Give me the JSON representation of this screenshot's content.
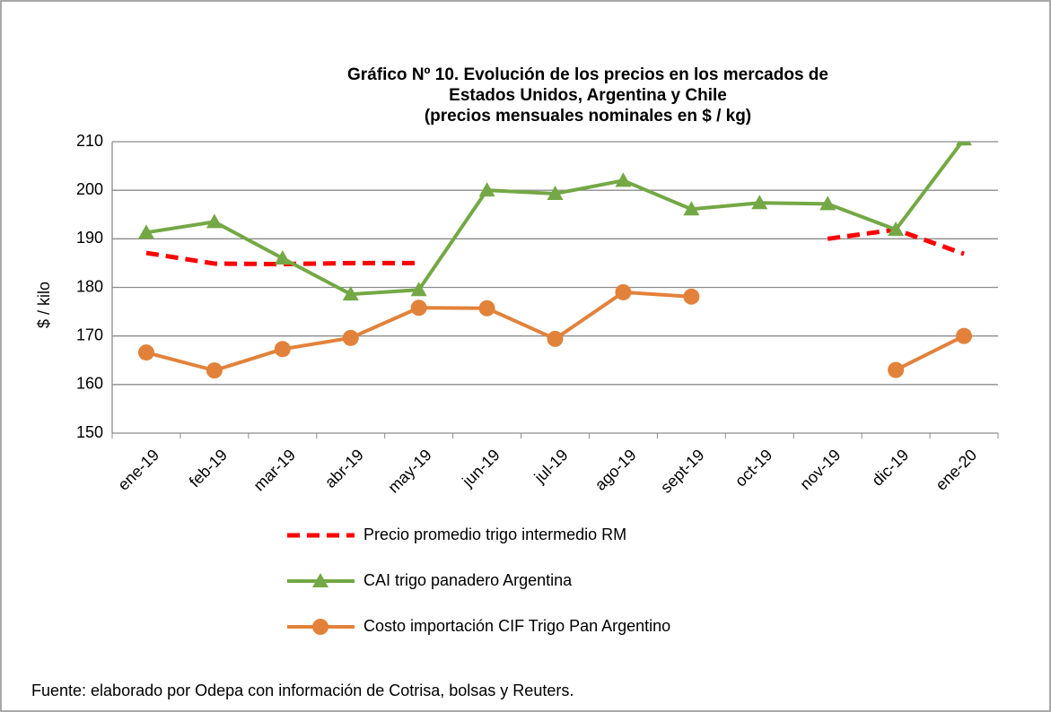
{
  "chart_data": {
    "type": "line",
    "title": [
      "Gráfico Nº 10. Evolución de los precios en los mercados de",
      "Estados Unidos, Argentina y Chile",
      "(precios mensuales nominales en $ / kg)"
    ],
    "y_label": "$ / kilo",
    "source": "Fuente: elaborado por Odepa con información de Cotrisa, bolsas y Reuters.",
    "categories": [
      "ene-19",
      "feb-19",
      "mar-19",
      "abr-19",
      "may-19",
      "jun-19",
      "jul-19",
      "ago-19",
      "sept-19",
      "oct-19",
      "nov-19",
      "dic-19",
      "ene-20"
    ],
    "ylim": [
      150,
      210
    ],
    "yticks": [
      150,
      160,
      170,
      180,
      190,
      200,
      210
    ],
    "grid": true,
    "series": [
      {
        "name": "Precio promedio trigo intermedio RM",
        "color": "#ff0000",
        "dashed": true,
        "marker": "none",
        "values": [
          187.1,
          184.9,
          184.8,
          185,
          185,
          null,
          null,
          null,
          null,
          null,
          190,
          191.9,
          186.9
        ]
      },
      {
        "name": "CAI trigo panadero Argentina",
        "color": "#74a845",
        "dashed": false,
        "marker": "triangle",
        "values": [
          191.3,
          193.5,
          186,
          178.6,
          179.5,
          200,
          199.3,
          202,
          196.1,
          197.4,
          197.2,
          191.9,
          210.5
        ]
      },
      {
        "name": "Costo importación CIF Trigo Pan Argentino",
        "color": "#e2823a",
        "dashed": false,
        "marker": "circle",
        "values": [
          166.6,
          162.9,
          167.3,
          169.6,
          175.8,
          175.7,
          169.4,
          179,
          178.1,
          null,
          null,
          163,
          170
        ]
      }
    ]
  }
}
